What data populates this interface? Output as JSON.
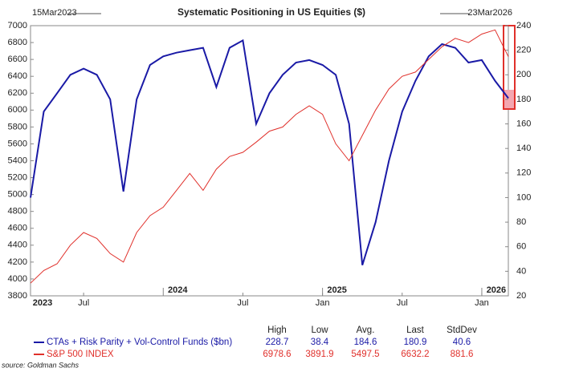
{
  "chart_data": {
    "type": "line",
    "title": "Systematic Positioning in US Equities ($)",
    "start_label": "15Mar2023",
    "end_label": "23Mar2026",
    "x": [
      "2023-03",
      "2023-04",
      "2023-05",
      "2023-06",
      "2023-07",
      "2023-08",
      "2023-09",
      "2023-10",
      "2023-11",
      "2023-12",
      "2024-01",
      "2024-02",
      "2024-03",
      "2024-04",
      "2024-05",
      "2024-06",
      "2024-07",
      "2024-08",
      "2024-09",
      "2024-10",
      "2024-11",
      "2024-12",
      "2025-01",
      "2025-02",
      "2025-03",
      "2025-04",
      "2025-05",
      "2025-06",
      "2025-07",
      "2025-08",
      "2025-09",
      "2025-10",
      "2025-11",
      "2025-12",
      "2026-01",
      "2026-02",
      "2026-03"
    ],
    "xlim": [
      "2023-03",
      "2026-03"
    ],
    "xticks": [
      {
        "value": "2023-03",
        "label": "2023"
      },
      {
        "value": "2023-07",
        "label": "Jul"
      },
      {
        "value": "2024-07",
        "label": "Jul"
      },
      {
        "value": "2025-01",
        "label": "Jan"
      },
      {
        "value": "2025-07",
        "label": "Jul"
      },
      {
        "value": "2026-01",
        "label": "Jan"
      }
    ],
    "year_labels": [
      {
        "value": "2024-01",
        "label": "2024"
      },
      {
        "value": "2025-01",
        "label": "2025"
      },
      {
        "value": "2026-01",
        "label": "2026"
      }
    ],
    "ylim": [
      3800,
      7000
    ],
    "yticks": [
      3800,
      4000,
      4200,
      4400,
      4600,
      4800,
      5000,
      5200,
      5400,
      5600,
      5800,
      6000,
      6200,
      6400,
      6600,
      6800,
      7000
    ],
    "y2lim": [
      20,
      240
    ],
    "y2ticks": [
      20,
      40,
      60,
      80,
      100,
      120,
      140,
      160,
      180,
      200,
      220,
      240
    ],
    "series": [
      {
        "name": "CTAs + Risk Parity + Vol-Control Funds ($bn)",
        "color": "#1a1aa6",
        "axis": "y2",
        "values": [
          100,
          170,
          185,
          200,
          205,
          200,
          180,
          105,
          180,
          208,
          215,
          218,
          220,
          222,
          190,
          222,
          228,
          160,
          185,
          200,
          210,
          212,
          208,
          200,
          160,
          45,
          80,
          130,
          170,
          195,
          215,
          225,
          222,
          210,
          212,
          195,
          180.9
        ]
      },
      {
        "name": "S&P 500 INDEX",
        "color": "#e0302b",
        "axis": "y",
        "values": [
          3950,
          4100,
          4180,
          4400,
          4550,
          4480,
          4300,
          4200,
          4550,
          4750,
          4850,
          5050,
          5250,
          5050,
          5300,
          5450,
          5500,
          5620,
          5750,
          5800,
          5950,
          6050,
          5950,
          5600,
          5400,
          5700,
          6000,
          6250,
          6400,
          6450,
          6600,
          6750,
          6850,
          6800,
          6900,
          6950,
          6632.2
        ]
      }
    ],
    "stats": {
      "headers": [
        "High",
        "Low",
        "Avg.",
        "Last",
        "StdDev"
      ],
      "rows": [
        [
          228.7,
          38.4,
          184.6,
          180.9,
          40.6
        ],
        [
          6978.6,
          3891.9,
          5497.5,
          6632.2,
          881.6
        ]
      ]
    },
    "source": "source: Goldman Sachs"
  }
}
